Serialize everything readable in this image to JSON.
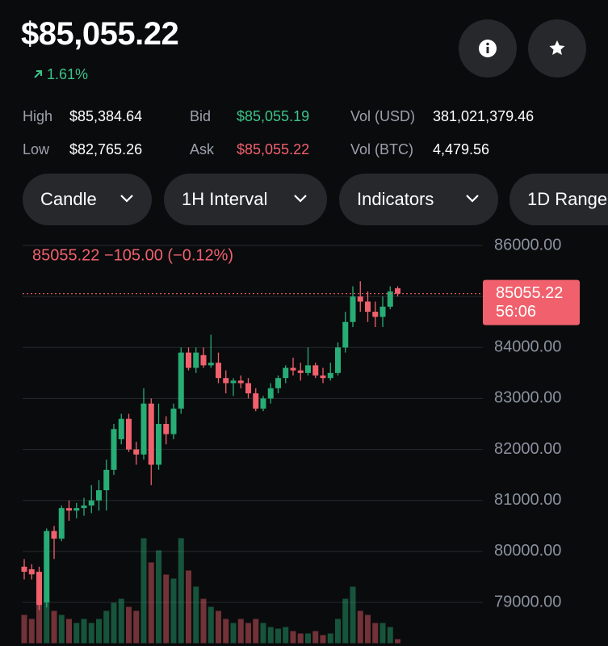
{
  "header": {
    "price": "$85,055.22",
    "change": "1.61%"
  },
  "stats": [
    {
      "label": "High",
      "value": "$85,384.64"
    },
    {
      "label": "Low",
      "value": "$82,765.26"
    },
    {
      "label": "Bid",
      "value": "$85,055.19"
    },
    {
      "label": "Ask",
      "value": "$85,055.22"
    },
    {
      "label": "Vol (USD)",
      "value": "381,021,379.46"
    },
    {
      "label": "Vol (BTC)",
      "value": "4,479.56"
    }
  ],
  "buttons": [
    "Candle",
    "1H Interval",
    "Indicators",
    "1D Range"
  ],
  "chart_data": {
    "type": "candlestick",
    "annotation": "85055.22  −105.00 (−0.12%)",
    "last_price": 85055.22,
    "countdown": "56:06",
    "up_color": "#27ad75",
    "down_color": "#f0616d",
    "grid": true,
    "ylim": [
      78200,
      86200
    ],
    "yticks": [
      {
        "value": 79000,
        "label": "79000.00"
      },
      {
        "value": 80000,
        "label": "80000.00"
      },
      {
        "value": 81000,
        "label": "81000.00"
      },
      {
        "value": 82000,
        "label": "82000.00"
      },
      {
        "value": 83000,
        "label": "83000.00"
      },
      {
        "value": 84000,
        "label": "84000.00"
      },
      {
        "value": 85000,
        "label": "85000.00"
      },
      {
        "value": 86000,
        "label": "86000.00"
      }
    ],
    "open": [
      79700,
      79650,
      79600,
      79000,
      80400,
      80250,
      80850,
      80800,
      80850,
      80900,
      81000,
      81200,
      81600,
      82200,
      82600,
      82000,
      81900,
      82900,
      81700,
      82500,
      82300,
      82800,
      83900,
      83600,
      83850,
      83650,
      83700,
      83400,
      83300,
      83350,
      83300,
      83100,
      82800,
      83000,
      83200,
      83400,
      83600,
      83550,
      83500,
      83650,
      83450,
      83400,
      83500,
      84000,
      84500,
      85000,
      84900,
      84700,
      84600,
      84800,
      85160.22
    ],
    "high": [
      79850,
      79750,
      79700,
      80450,
      80500,
      80900,
      81000,
      80950,
      81050,
      81300,
      81400,
      81800,
      82500,
      82700,
      82700,
      82150,
      83200,
      83000,
      82900,
      82650,
      82900,
      84000,
      84000,
      84000,
      84000,
      84250,
      83900,
      83550,
      83400,
      83450,
      83400,
      83200,
      83050,
      83300,
      83450,
      83650,
      83800,
      83700,
      84000,
      83700,
      83600,
      83700,
      84100,
      84700,
      85200,
      85300,
      85100,
      84900,
      85000,
      85200,
      85200
    ],
    "low": [
      79450,
      79450,
      78850,
      78900,
      79850,
      80200,
      80600,
      80650,
      80700,
      80750,
      80800,
      80800,
      81500,
      82100,
      81950,
      81700,
      81800,
      81300,
      81600,
      82100,
      82200,
      82700,
      83550,
      83500,
      83600,
      83600,
      83300,
      83100,
      83050,
      83200,
      83000,
      82750,
      82750,
      82900,
      83100,
      83300,
      83450,
      83350,
      83450,
      83400,
      83300,
      83350,
      83450,
      83900,
      84400,
      84700,
      84500,
      84400,
      84400,
      84750,
      85000
    ],
    "close": [
      79600,
      79550,
      78950,
      80400,
      80250,
      80850,
      80800,
      80850,
      80900,
      81000,
      81200,
      81600,
      82400,
      82600,
      82000,
      81900,
      82900,
      81700,
      82500,
      82300,
      82800,
      83900,
      83600,
      83900,
      83650,
      83700,
      83400,
      83300,
      83350,
      83300,
      83100,
      82800,
      83000,
      83200,
      83400,
      83600,
      83550,
      83500,
      83650,
      83450,
      83400,
      83500,
      84000,
      84500,
      85000,
      84900,
      84700,
      84600,
      84800,
      85100,
      85055.22
    ],
    "volume": [
      35,
      30,
      50,
      55,
      40,
      35,
      30,
      25,
      30,
      25,
      30,
      40,
      50,
      55,
      45,
      40,
      130,
      100,
      115,
      85,
      80,
      130,
      90,
      70,
      55,
      45,
      40,
      30,
      25,
      30,
      25,
      30,
      25,
      20,
      18,
      20,
      15,
      12,
      12,
      15,
      10,
      12,
      30,
      55,
      70,
      40,
      35,
      25,
      25,
      20,
      5
    ]
  }
}
